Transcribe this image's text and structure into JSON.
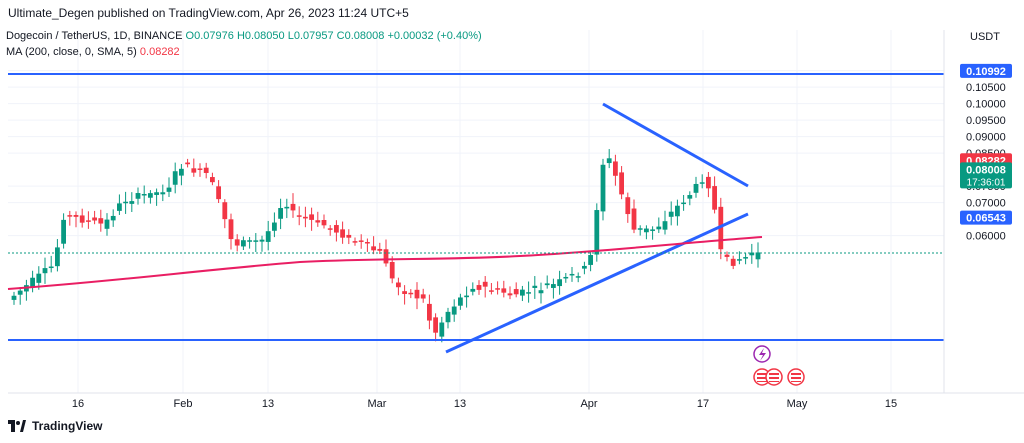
{
  "header": {
    "attribution": "Ultimate_Degen published on TradingView.com, Apr 26, 2023 11:24 UTC+5"
  },
  "legend": {
    "symbol": "Dogecoin / TetherUS, 1D, BINANCE",
    "open": "O0.07976",
    "high": "H0.08050",
    "low": "L0.07957",
    "close": "C0.08008",
    "change": "+0.00032 (+0.40%)",
    "ma_label": "MA (200, close, 0, SMA, 5)",
    "ma_value": "0.08282"
  },
  "axis": {
    "currency": "USDT",
    "price_ticks": [
      "0.11000",
      "0.10500",
      "0.10000",
      "0.09500",
      "0.09000",
      "0.08500",
      "0.07500",
      "0.07000",
      "0.06000"
    ],
    "price_values": [
      0.11,
      0.105,
      0.1,
      0.095,
      0.09,
      0.085,
      0.075,
      0.07,
      0.06
    ],
    "date_ticks": [
      "16",
      "Feb",
      "13",
      "Mar",
      "13",
      "Apr",
      "17",
      "May",
      "15"
    ],
    "date_x": [
      78,
      183,
      268,
      377,
      460,
      589,
      703,
      797,
      891
    ]
  },
  "levels": {
    "upper": "0.10992",
    "upper_value": 0.10992,
    "lower": "0.06543",
    "lower_value": 0.06543,
    "ma_badge": "0.08282",
    "ma_value": 0.08282,
    "last_price": "0.08008",
    "last_value": 0.08008,
    "countdown": "17:36:01"
  },
  "colors": {
    "up": "#089981",
    "down": "#f23645",
    "line": "#2962ff",
    "ma": "#e91e63",
    "grid": "#f0f3fa"
  },
  "icons": [
    "lightning-event-icon",
    "us-flag-event-icon",
    "us-flag-event-icon",
    "us-flag-event-icon"
  ],
  "brand": "TradingView"
}
